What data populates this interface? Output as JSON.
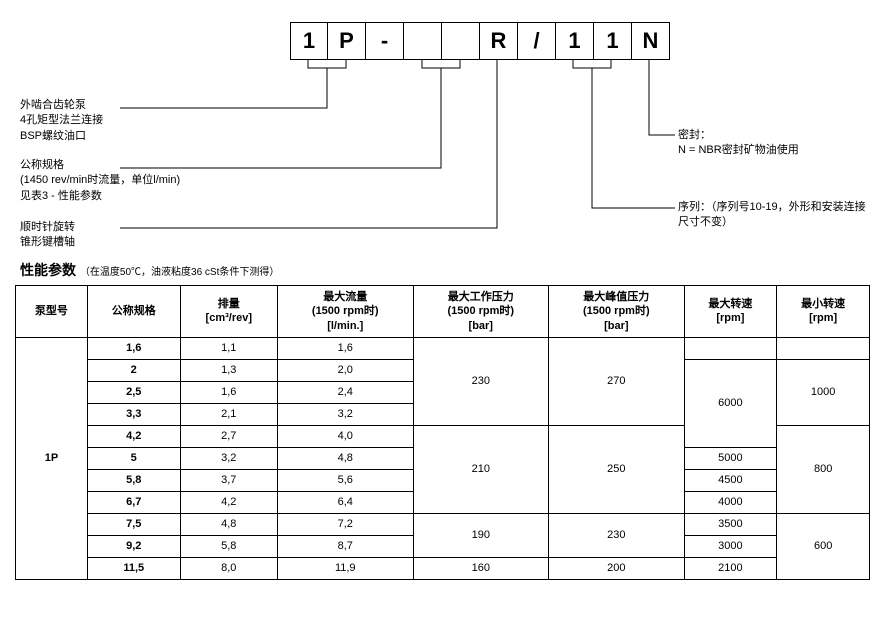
{
  "code_boxes": [
    "1",
    "P",
    "-",
    "",
    "",
    "R",
    "/",
    "1",
    "1",
    "N"
  ],
  "labels": {
    "left1": [
      "外啮合齿轮泵",
      "4孔矩型法兰连接",
      "BSP螺纹油口"
    ],
    "left2": [
      "公称规格",
      "(1450 rev/min时流量，单位l/min)",
      "见表3 - 性能参数"
    ],
    "left3": [
      "顺时针旋转",
      "锥形键槽轴"
    ],
    "right1_title": "密封：",
    "right1_body": "N = NBR密封矿物油使用",
    "right2": "序列：（序列号10-19，外形和安装连接尺寸不变）"
  },
  "section_title": "性能参数",
  "section_sub": "（在温度50℃，油液粘度36 cSt条件下测得）",
  "table": {
    "headers": [
      {
        "t": "泵型号"
      },
      {
        "t": "公称规格"
      },
      {
        "t": "排量",
        "u": "[cm³/rev]"
      },
      {
        "t": "最大流量",
        "u": "(1500 rpm时)",
        "u2": "[l/min.]"
      },
      {
        "t": "最大工作压力",
        "u": "(1500 rpm时)",
        "u2": "[bar]"
      },
      {
        "t": "最大峰值压力",
        "u": "(1500 rpm时)",
        "u2": "[bar]"
      },
      {
        "t": "最大转速",
        "u": "[rpm]"
      },
      {
        "t": "最小转速",
        "u": "[rpm]"
      }
    ],
    "model": "1P",
    "rows": [
      {
        "nom": "1,6",
        "disp": "1,1",
        "flow": "1,6"
      },
      {
        "nom": "2",
        "disp": "1,3",
        "flow": "2,0"
      },
      {
        "nom": "2,5",
        "disp": "1,6",
        "flow": "2,4"
      },
      {
        "nom": "3,3",
        "disp": "2,1",
        "flow": "3,2"
      },
      {
        "nom": "4,2",
        "disp": "2,7",
        "flow": "4,0"
      },
      {
        "nom": "5",
        "disp": "3,2",
        "flow": "4,8"
      },
      {
        "nom": "5,8",
        "disp": "3,7",
        "flow": "5,6"
      },
      {
        "nom": "6,7",
        "disp": "4,2",
        "flow": "6,4"
      },
      {
        "nom": "7,5",
        "disp": "4,8",
        "flow": "7,2"
      },
      {
        "nom": "9,2",
        "disp": "5,8",
        "flow": "8,7"
      },
      {
        "nom": "11,5",
        "disp": "8,0",
        "flow": "11,9"
      }
    ],
    "wp": [
      {
        "v": "230",
        "span": 4
      },
      {
        "v": "210",
        "span": 4
      },
      {
        "v": "190",
        "span": 2
      },
      {
        "v": "160",
        "span": 1
      }
    ],
    "pp": [
      {
        "v": "270",
        "span": 4
      },
      {
        "v": "250",
        "span": 4
      },
      {
        "v": "230",
        "span": 2
      },
      {
        "v": "200",
        "span": 1
      }
    ],
    "maxs": [
      {
        "v": "6000",
        "span": 4
      },
      {
        "v": "5000",
        "span": 1
      },
      {
        "v": "4500",
        "span": 1
      },
      {
        "v": "4000",
        "span": 1
      },
      {
        "v": "3500",
        "span": 1
      },
      {
        "v": "3000",
        "span": 1
      },
      {
        "v": "2100",
        "span": 1
      }
    ],
    "mins": [
      {
        "v": "1000",
        "span": 3
      },
      {
        "v": "800",
        "span": 4
      },
      {
        "v": "600",
        "span": 3
      }
    ],
    "maxs_prefix_empty": 1,
    "mins_prefix_empty": 1
  }
}
